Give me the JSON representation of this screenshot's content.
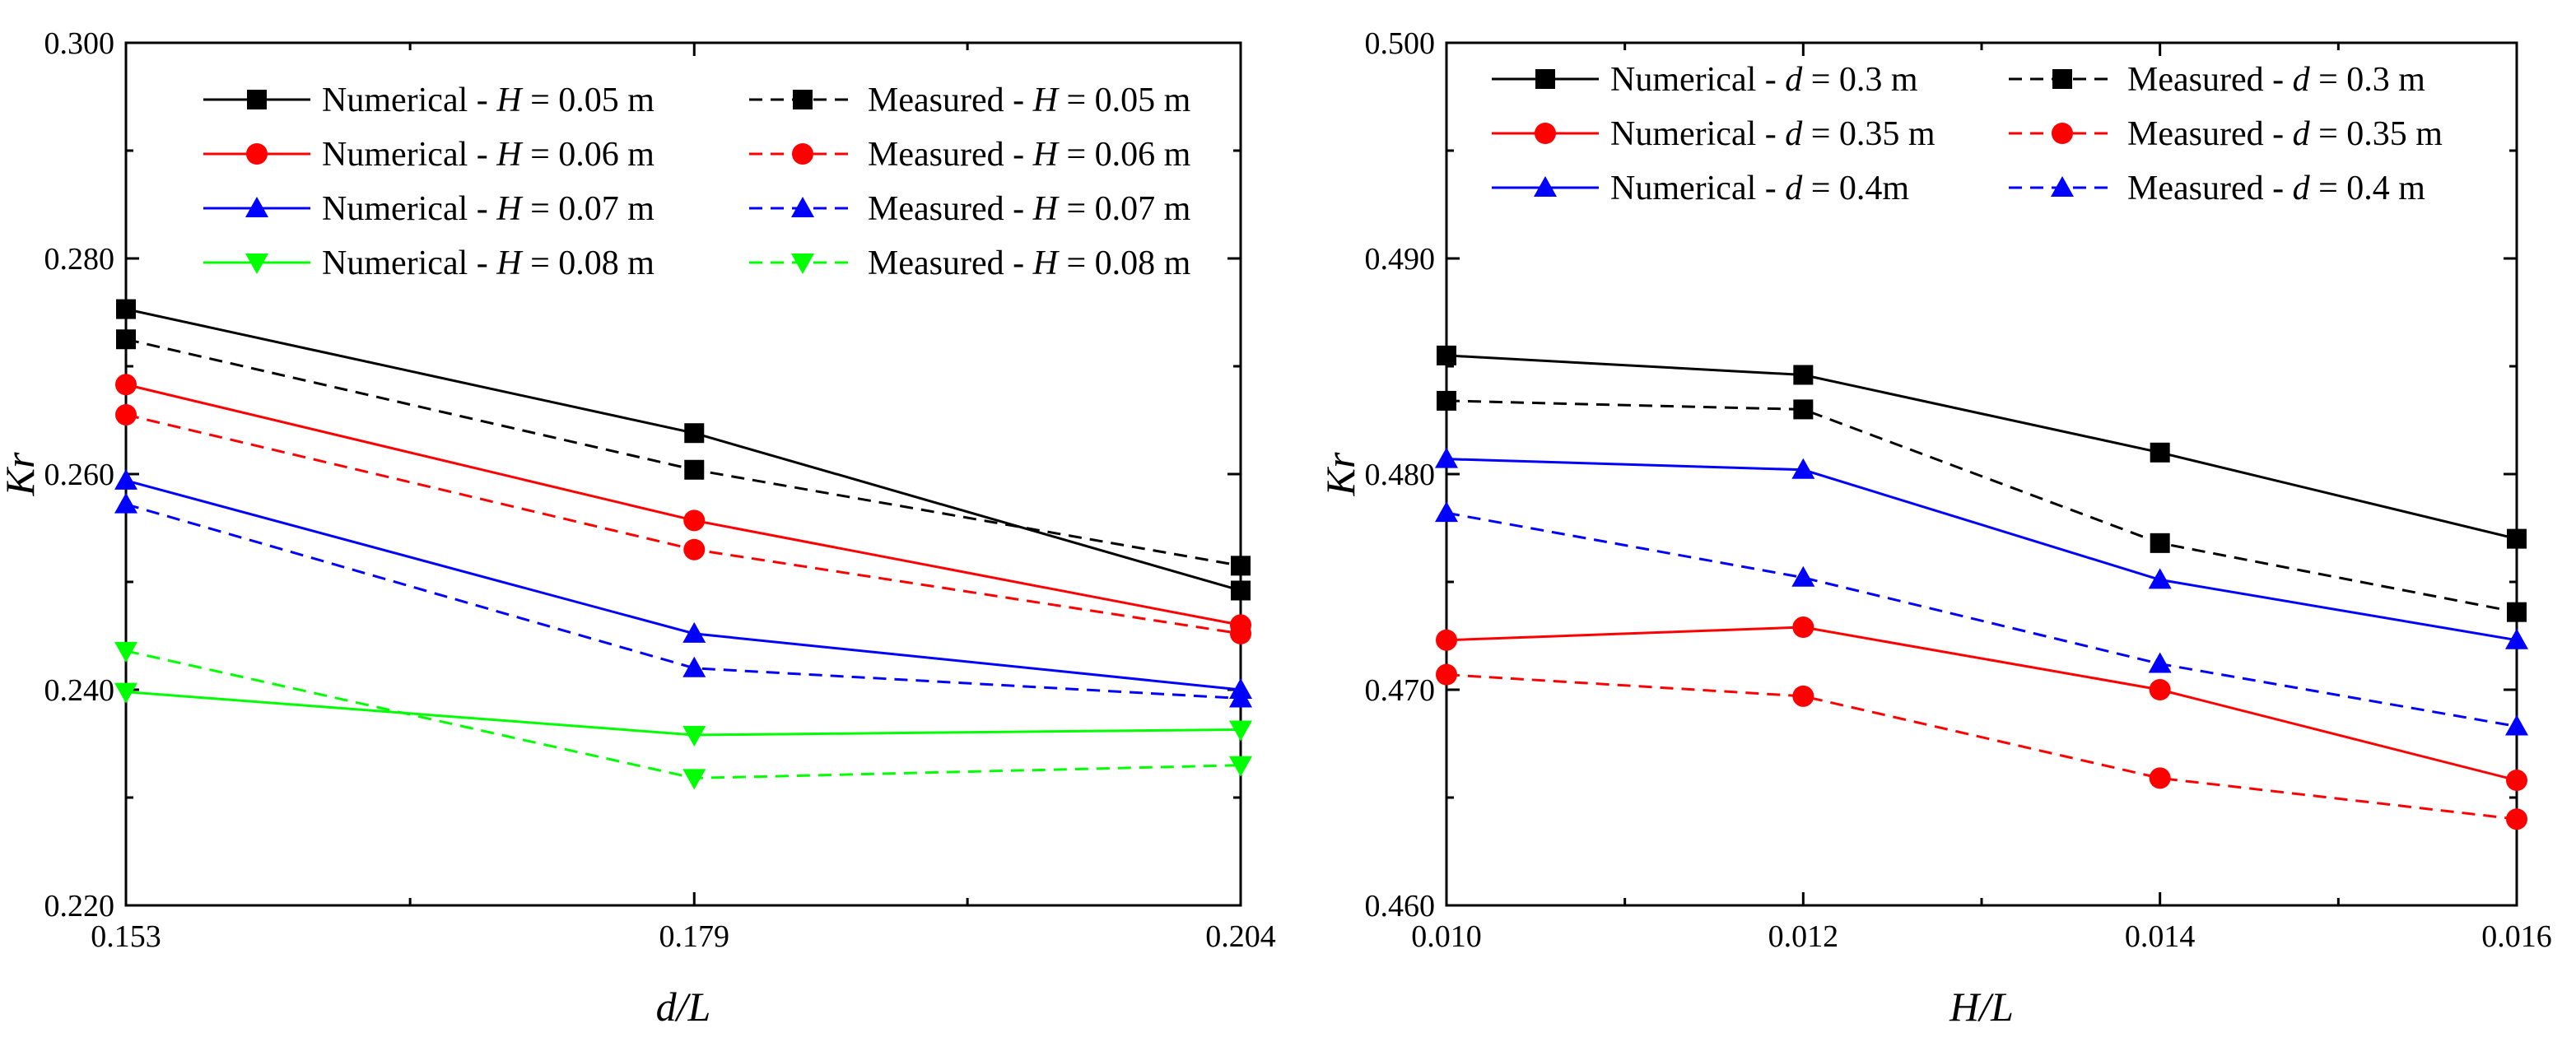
{
  "chart_data": [
    {
      "type": "line",
      "id": "left",
      "xlabel_italic": "d",
      "xlabel_rest": "/L",
      "ylabel": "Kr",
      "x": [
        0.153,
        0.179,
        0.204
      ],
      "x_tick_labels": [
        "0.153",
        "0.179",
        "0.204"
      ],
      "ylim": [
        0.22,
        0.3
      ],
      "y_ticks": [
        0.22,
        0.24,
        0.26,
        0.28,
        0.3
      ],
      "y_tick_labels": [
        "0.220",
        "0.240",
        "0.260",
        "0.280",
        "0.300"
      ],
      "legend_param": "H",
      "series": [
        {
          "name": "Numerical - H = 0.05 m",
          "label_prefix": "Numerical - ",
          "label_value": " = 0.05 m",
          "color": "#000000",
          "dashed": false,
          "marker": "square",
          "values": [
            0.2753,
            0.2638,
            0.2492
          ]
        },
        {
          "name": "Numerical - H = 0.06 m",
          "label_prefix": "Numerical - ",
          "label_value": " = 0.06 m",
          "color": "#ff0000",
          "dashed": false,
          "marker": "circle",
          "values": [
            0.2683,
            0.2557,
            0.246
          ]
        },
        {
          "name": "Numerical - H = 0.07 m",
          "label_prefix": "Numerical - ",
          "label_value": " = 0.07 m",
          "color": "#0000ff",
          "dashed": false,
          "marker": "triangle-up",
          "values": [
            0.2594,
            0.2452,
            0.24
          ]
        },
        {
          "name": "Numerical - H = 0.08 m",
          "label_prefix": "Numerical - ",
          "label_value": " = 0.08 m",
          "color": "#00ff00",
          "dashed": false,
          "marker": "triangle-down",
          "values": [
            0.2398,
            0.2358,
            0.2363
          ]
        },
        {
          "name": "Measured - H = 0.05 m",
          "label_prefix": "Measured - ",
          "label_value": " = 0.05 m",
          "color": "#000000",
          "dashed": true,
          "marker": "square",
          "values": [
            0.2725,
            0.2604,
            0.2515
          ]
        },
        {
          "name": "Measured - H = 0.06 m",
          "label_prefix": "Measured - ",
          "label_value": " = 0.06 m",
          "color": "#ff0000",
          "dashed": true,
          "marker": "circle",
          "values": [
            0.2655,
            0.253,
            0.2452
          ]
        },
        {
          "name": "Measured - H = 0.07 m",
          "label_prefix": "Measured - ",
          "label_value": " = 0.07 m",
          "color": "#0000ff",
          "dashed": true,
          "marker": "triangle-up",
          "values": [
            0.2572,
            0.242,
            0.2392
          ]
        },
        {
          "name": "Measured - H = 0.08 m",
          "label_prefix": "Measured - ",
          "label_value": " = 0.08 m",
          "color": "#00ff00",
          "dashed": true,
          "marker": "triangle-down",
          "values": [
            0.2436,
            0.2318,
            0.233
          ]
        }
      ]
    },
    {
      "type": "line",
      "id": "right",
      "xlabel_italic": "H",
      "xlabel_rest": "/L",
      "ylabel": "Kr",
      "x": [
        0.01,
        0.012,
        0.014,
        0.016
      ],
      "x_tick_labels": [
        "0.010",
        "0.012",
        "0.014",
        "0.016"
      ],
      "ylim": [
        0.46,
        0.5
      ],
      "y_ticks": [
        0.46,
        0.47,
        0.48,
        0.49,
        0.5
      ],
      "y_tick_labels": [
        "0.460",
        "0.470",
        "0.480",
        "0.490",
        "0.500"
      ],
      "legend_param": "d",
      "series": [
        {
          "name": "Numerical - d = 0.3 m",
          "label_prefix": "Numerical - ",
          "label_value": " = 0.3 m",
          "color": "#000000",
          "dashed": false,
          "marker": "square",
          "values": [
            0.4855,
            0.4846,
            0.481,
            0.477
          ]
        },
        {
          "name": "Numerical - d = 0.35 m",
          "label_prefix": "Numerical - ",
          "label_value": " = 0.35 m",
          "color": "#ff0000",
          "dashed": false,
          "marker": "circle",
          "values": [
            0.4723,
            0.4729,
            0.47,
            0.4658
          ]
        },
        {
          "name": "Numerical - d = 0.4m",
          "label_prefix": "Numerical - ",
          "label_value": " = 0.4m",
          "color": "#0000ff",
          "dashed": false,
          "marker": "triangle-up",
          "values": [
            0.4807,
            0.4802,
            0.4751,
            0.4723
          ]
        },
        {
          "name": "Measured - d = 0.3 m",
          "label_prefix": "Measured - ",
          "label_value": " = 0.3 m",
          "color": "#000000",
          "dashed": true,
          "marker": "square",
          "values": [
            0.4834,
            0.483,
            0.4768,
            0.4736
          ]
        },
        {
          "name": "Measured - d = 0.35 m",
          "label_prefix": "Measured - ",
          "label_value": " = 0.35 m",
          "color": "#ff0000",
          "dashed": true,
          "marker": "circle",
          "values": [
            0.4707,
            0.4697,
            0.4659,
            0.464
          ]
        },
        {
          "name": "Measured - d = 0.4 m",
          "label_prefix": "Measured - ",
          "label_value": " = 0.4 m",
          "color": "#0000ff",
          "dashed": true,
          "marker": "triangle-up",
          "values": [
            0.4782,
            0.4752,
            0.4712,
            0.4683
          ]
        }
      ]
    }
  ]
}
